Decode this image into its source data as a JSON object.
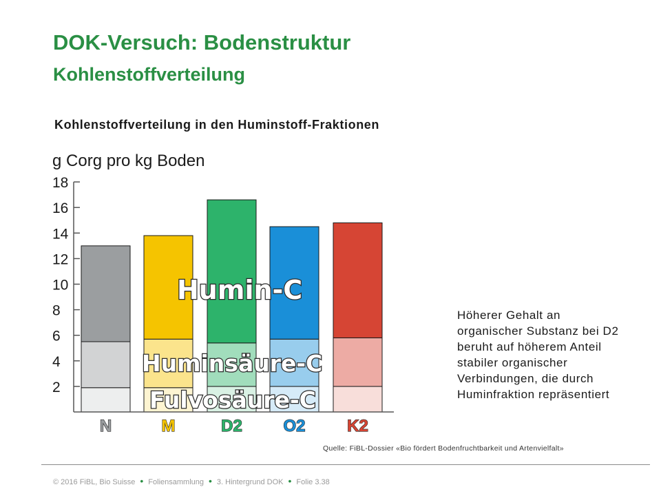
{
  "slide": {
    "title": "DOK-Versuch: Bodenstruktur",
    "subtitle": "Kohlenstoffverteilung",
    "chart_heading": "Kohlenstoffverteilung in den Huminstoff-Fraktionen",
    "note": "Höherer Gehalt an organischer Substanz bei D2 beruht auf höherem Anteil stabiler organischer Verbindungen, die durch Huminfraktion repräsentiert",
    "source": "Quelle: FiBL-Dossier «Bio fördert Bodenfruchtbarkeit und Artenvielfalt»",
    "footer": {
      "copyright": "© 2016 FiBL, Bio Suisse",
      "collection": "Foliensammlung",
      "chapter": "3. Hintergrund DOK",
      "slide_no": "Folie 3.38"
    }
  },
  "chart_data": {
    "type": "bar",
    "stacked": true,
    "ylabel": "g Corg pro kg Boden",
    "ylim": [
      0,
      18
    ],
    "yticks": [
      2,
      4,
      6,
      8,
      10,
      12,
      14,
      16,
      18
    ],
    "categories": [
      "N",
      "M",
      "D2",
      "O2",
      "K2"
    ],
    "category_colors": [
      "#9b9ea0",
      "#f5c400",
      "#2db36b",
      "#1a8fd8",
      "#d64534"
    ],
    "series": [
      {
        "name": "Fulvosäure-C",
        "values": [
          1.9,
          1.9,
          2.0,
          2.0,
          2.0
        ]
      },
      {
        "name": "Huminsäure-C",
        "values": [
          3.6,
          3.8,
          3.4,
          3.7,
          3.8
        ]
      },
      {
        "name": "Humin-C",
        "values": [
          7.5,
          8.1,
          11.2,
          8.8,
          9.0
        ]
      }
    ],
    "totals": [
      13.0,
      13.8,
      16.6,
      14.5,
      14.8
    ]
  }
}
